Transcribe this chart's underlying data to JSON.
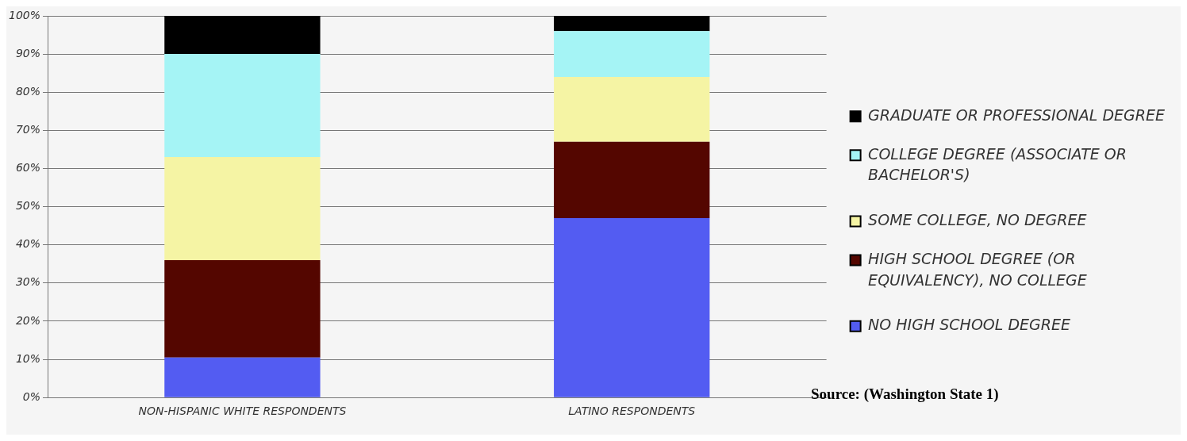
{
  "chart_data": {
    "type": "bar",
    "stacked": true,
    "categories": [
      "NON-HISPANIC WHITE RESPONDENTS",
      "LATINO RESPONDENTS"
    ],
    "series": [
      {
        "name": "NO HIGH SCHOOL DEGREE",
        "color": "#535cf2",
        "values": [
          10.5,
          47
        ]
      },
      {
        "name": "HIGH SCHOOL DEGREE (OR EQUIVALENCY), NO COLLEGE",
        "color": "#540600",
        "values": [
          25.5,
          20
        ]
      },
      {
        "name": "SOME COLLEGE, NO DEGREE",
        "color": "#f5f4a4",
        "values": [
          27,
          17
        ]
      },
      {
        "name": "COLLEGE DEGREE (ASSOCIATE OR BACHELOR'S)",
        "color": "#a5f4f5",
        "values": [
          27,
          12
        ]
      },
      {
        "name": "GRADUATE OR PROFESSIONAL DEGREE",
        "color": "#000000",
        "values": [
          10,
          4
        ]
      }
    ],
    "ylim": [
      0,
      100
    ],
    "yticks": [
      {
        "value": 0,
        "label": "0%"
      },
      {
        "value": 10,
        "label": "10%"
      },
      {
        "value": 20,
        "label": "20%"
      },
      {
        "value": 30,
        "label": "30%"
      },
      {
        "value": 40,
        "label": "40%"
      },
      {
        "value": 50,
        "label": "50%"
      },
      {
        "value": 60,
        "label": "60%"
      },
      {
        "value": 70,
        "label": "70%"
      },
      {
        "value": 80,
        "label": "80%"
      },
      {
        "value": 90,
        "label": "90%"
      },
      {
        "value": 100,
        "label": "100%"
      }
    ],
    "grid": "y",
    "legend": "right",
    "annotations": [
      "Source: (Washington State 1)"
    ]
  }
}
